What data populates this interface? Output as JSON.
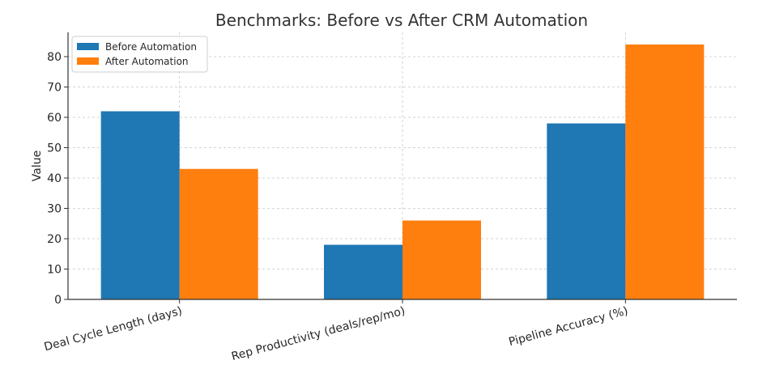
{
  "chart_data": {
    "type": "bar",
    "title": "Benchmarks: Before vs After CRM Automation",
    "xlabel": "",
    "ylabel": "Value",
    "categories": [
      "Deal Cycle Length (days)",
      "Rep Productivity (deals/rep/mo)",
      "Pipeline Accuracy (%)"
    ],
    "series": [
      {
        "name": "Before Automation",
        "color": "#1f77b4",
        "values": [
          62,
          18,
          58
        ]
      },
      {
        "name": "After Automation",
        "color": "#ff7f0e",
        "values": [
          43,
          26,
          84
        ]
      }
    ],
    "ylim": [
      0,
      88
    ],
    "yticks": [
      0,
      10,
      20,
      30,
      40,
      50,
      60,
      70,
      80
    ],
    "grid": true,
    "legend_position": "top-left"
  }
}
